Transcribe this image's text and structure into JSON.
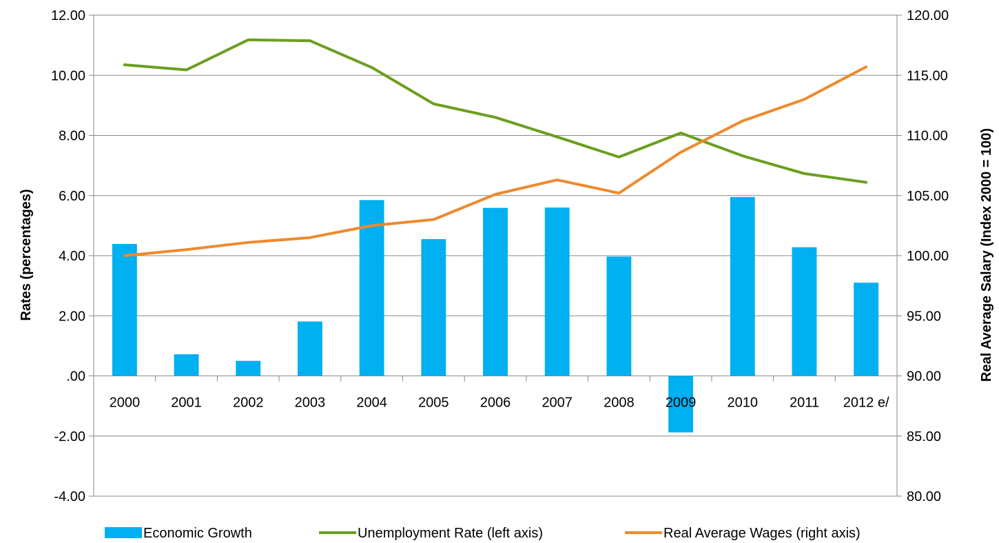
{
  "chart_data": {
    "type": "bar",
    "categories": [
      "2000",
      "2001",
      "2002",
      "2003",
      "2004",
      "2005",
      "2006",
      "2007",
      "2008",
      "2009",
      "2010",
      "2011",
      "2012 e/"
    ],
    "series": [
      {
        "name": "Economic Growth",
        "type": "bar",
        "axis": "left",
        "color": "#00b0f0",
        "values": [
          4.39,
          0.72,
          0.5,
          1.81,
          5.85,
          4.55,
          5.59,
          5.6,
          3.97,
          -1.88,
          5.95,
          4.28,
          3.1
        ]
      },
      {
        "name": "Unemployment Rate (left axis)",
        "type": "line",
        "axis": "left",
        "color": "#6b9e1f",
        "values": [
          10.35,
          10.18,
          11.18,
          11.15,
          10.26,
          9.05,
          8.6,
          7.95,
          7.28,
          8.08,
          7.32,
          6.73,
          6.44
        ]
      },
      {
        "name": "Real Average Wages (right axis)",
        "type": "line",
        "axis": "right",
        "color": "#ee8a2e",
        "values": [
          100.0,
          100.5,
          101.1,
          101.5,
          102.5,
          103.0,
          105.1,
          106.3,
          105.2,
          108.6,
          111.2,
          113.0,
          115.7
        ]
      }
    ],
    "y_left": {
      "label": "Rates (percentages)",
      "ylim": [
        -4,
        12
      ],
      "ticks": [
        12,
        10,
        8,
        6,
        4,
        2,
        0,
        -2,
        -4
      ],
      "tick_labels": [
        "12.00",
        "10.00",
        "8.00",
        "6.00",
        "4.00",
        "2.00",
        ".00",
        "-2.00",
        "-4.00"
      ]
    },
    "y_right": {
      "label": "Real Average Salary (Index 2000 = 100)",
      "ylim": [
        80,
        120
      ],
      "ticks": [
        120,
        115,
        110,
        105,
        100,
        95,
        90,
        85,
        80
      ],
      "tick_labels": [
        "120.00",
        "115.00",
        "110.00",
        "105.00",
        "100.00",
        "95.00",
        "90.00",
        "85.00",
        "80.00"
      ]
    },
    "grid": true,
    "legend": "bottom"
  }
}
